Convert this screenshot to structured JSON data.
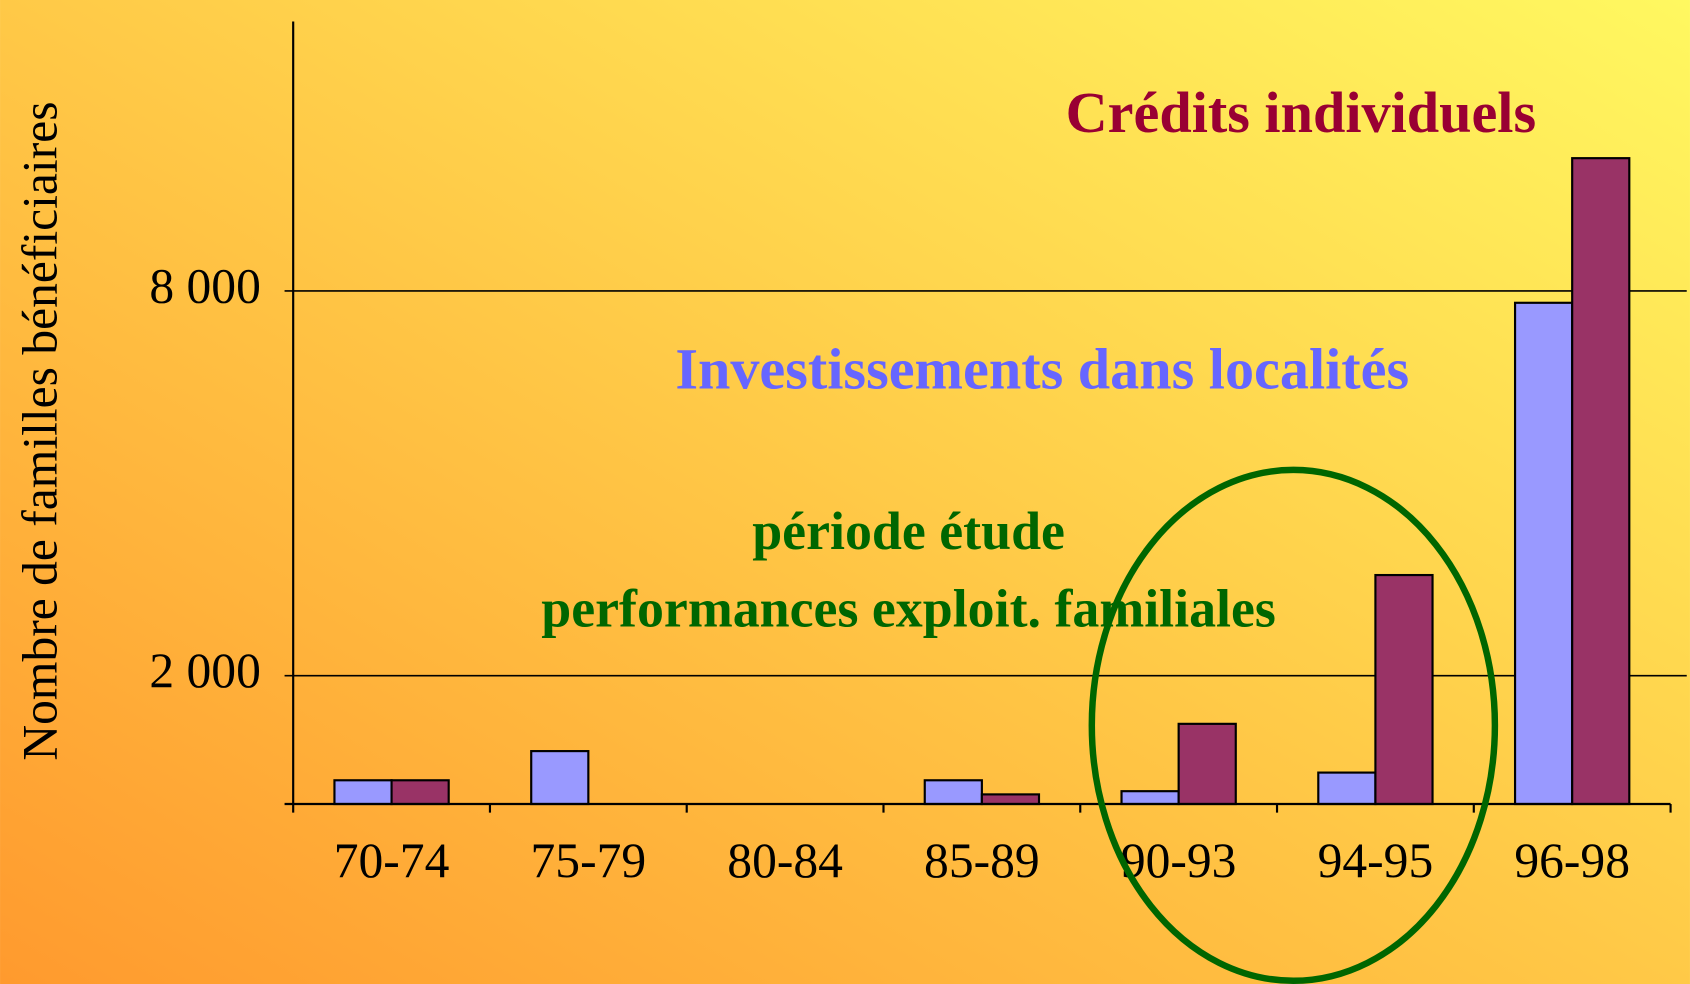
{
  "chart_data": {
    "type": "bar",
    "ylabel": "Nombre de familles bénéficiaires",
    "categories": [
      "70-74",
      "75-79",
      "80-84",
      "85-89",
      "90-93",
      "94-95",
      "96-98"
    ],
    "series": [
      {
        "name": "Investissements dans localités",
        "color": "#9999ff",
        "values": [
          370,
          825,
          0,
          370,
          200,
          490,
          7815
        ]
      },
      {
        "name": "Crédits individuels",
        "color": "#993366",
        "values": [
          370,
          0,
          0,
          150,
          1250,
          3570,
          10070
        ]
      }
    ],
    "annotations": [
      "période étude",
      "performances exploit. familiales"
    ],
    "ylim": [
      0,
      12200
    ],
    "yticks": [
      {
        "value": 2000,
        "label": "2 000"
      },
      {
        "value": 8000,
        "label": "8 000"
      }
    ],
    "grid": true
  }
}
